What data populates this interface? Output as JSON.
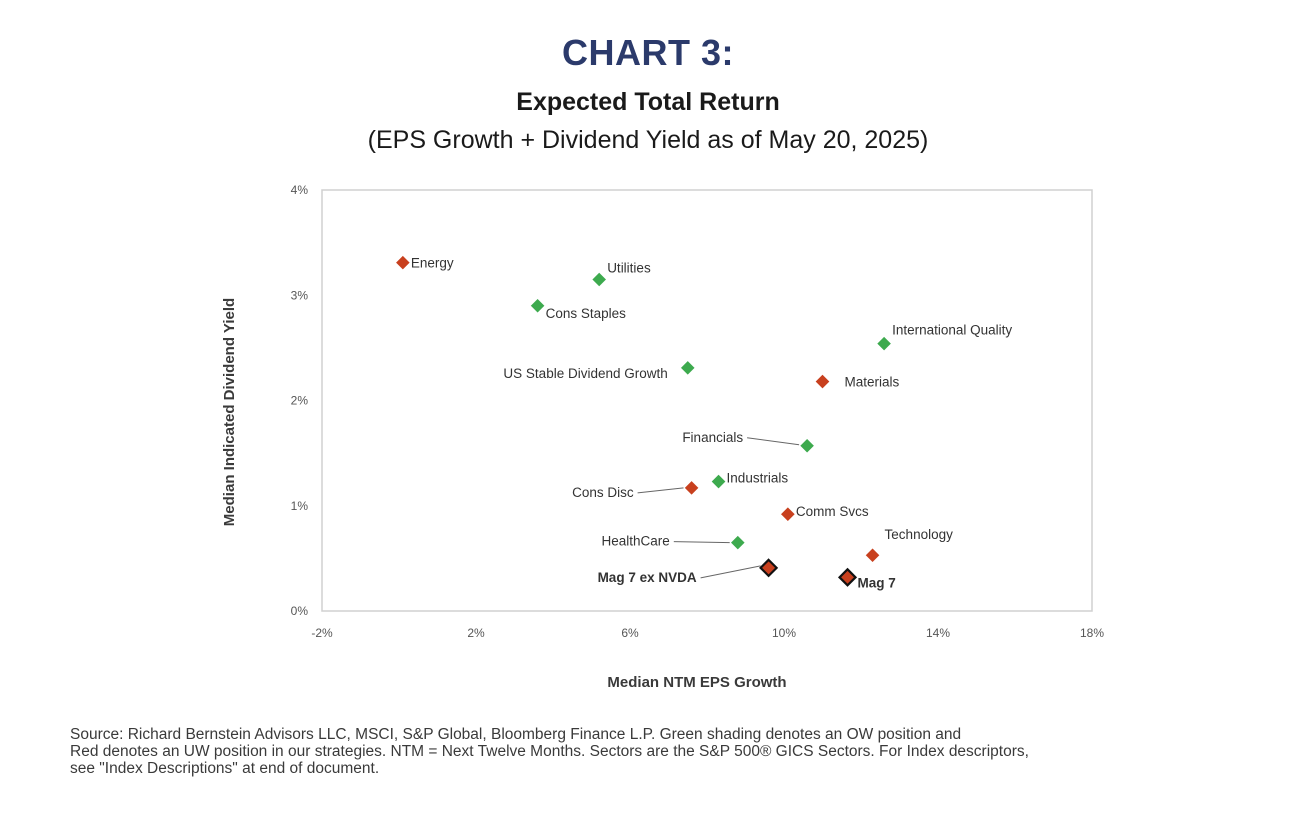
{
  "header": {
    "title": "CHART 3:",
    "subtitle": "Expected Total Return",
    "subtitle2": "(EPS Growth + Dividend Yield as of May 20, 2025)"
  },
  "footer": {
    "line1": "Source: Richard Bernstein Advisors LLC, MSCI, S&P Global, Bloomberg Finance L.P. Green shading denotes an OW position and",
    "line2": "Red denotes an UW position in our strategies.  NTM = Next Twelve Months. Sectors are the S&P 500® GICS Sectors. For Index descriptors,",
    "line3": "see \"Index Descriptions\" at end of document."
  },
  "colors": {
    "green": "#3daa4e",
    "red": "#c8401e",
    "black": "#222222",
    "title": "#2b3a6b"
  },
  "chart_data": {
    "type": "scatter",
    "xlabel": "Median NTM EPS Growth",
    "ylabel": "Median Indicated Dividend Yield",
    "xlim": [
      -2,
      18
    ],
    "ylim": [
      0,
      4
    ],
    "xticks": [
      -2,
      2,
      6,
      10,
      14,
      18
    ],
    "xtick_labels": [
      "-2%",
      "2%",
      "6%",
      "10%",
      "14%",
      "18%"
    ],
    "yticks": [
      0,
      1,
      2,
      3,
      4
    ],
    "ytick_labels": [
      "0%",
      "1%",
      "2%",
      "3%",
      "4%"
    ],
    "grid": false,
    "points": [
      {
        "label": "Energy",
        "x": 0.1,
        "y": 3.31,
        "color": "red",
        "bold": false
      },
      {
        "label": "Utilities",
        "x": 5.2,
        "y": 3.15,
        "color": "green",
        "bold": false
      },
      {
        "label": "Cons Staples",
        "x": 3.6,
        "y": 2.9,
        "color": "green",
        "bold": false
      },
      {
        "label": "International Quality",
        "x": 12.6,
        "y": 2.54,
        "color": "green",
        "bold": false
      },
      {
        "label": "US Stable Dividend Growth",
        "x": 7.5,
        "y": 2.31,
        "color": "green",
        "bold": false
      },
      {
        "label": "Materials",
        "x": 11.0,
        "y": 2.18,
        "color": "red",
        "bold": false
      },
      {
        "label": "Financials",
        "x": 10.6,
        "y": 1.57,
        "color": "green",
        "bold": false
      },
      {
        "label": "Industrials",
        "x": 8.3,
        "y": 1.23,
        "color": "green",
        "bold": false
      },
      {
        "label": "Cons Disc",
        "x": 7.6,
        "y": 1.17,
        "color": "red",
        "bold": false
      },
      {
        "label": "Comm Svcs",
        "x": 10.1,
        "y": 0.92,
        "color": "red",
        "bold": false
      },
      {
        "label": "HealthCare",
        "x": 8.8,
        "y": 0.65,
        "color": "green",
        "bold": false
      },
      {
        "label": "Technology",
        "x": 12.3,
        "y": 0.53,
        "color": "red",
        "bold": false
      },
      {
        "label": "Mag 7 ex NVDA",
        "x": 9.6,
        "y": 0.41,
        "color": "black",
        "bold": true
      },
      {
        "label": "Mag 7",
        "x": 11.65,
        "y": 0.32,
        "color": "black",
        "bold": true
      }
    ]
  }
}
